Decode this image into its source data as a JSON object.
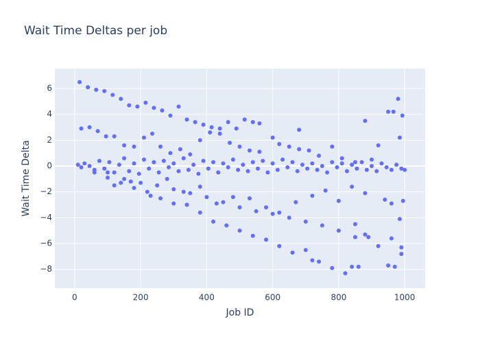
{
  "chart_data": {
    "type": "scatter",
    "title": "Wait Time Deltas per job",
    "x_label": "Job ID",
    "y_label": "Wait Time Delta",
    "color": "#636efa",
    "grid": true,
    "xlim": [
      -60,
      1062
    ],
    "xticks": [
      0,
      200,
      400,
      600,
      800,
      1000
    ],
    "ylim": [
      -9.45,
      7.54
    ],
    "yticks": [
      {
        "value": -8,
        "label": "−8"
      },
      {
        "value": -6,
        "label": "−6"
      },
      {
        "value": -4,
        "label": "−4"
      },
      {
        "value": -2,
        "label": "−2"
      },
      0,
      2,
      4,
      6
    ],
    "x": [
      10,
      20,
      30,
      45,
      60,
      75,
      90,
      105,
      120,
      135,
      150,
      165,
      180,
      195,
      210,
      225,
      240,
      255,
      270,
      285,
      300,
      315,
      330,
      345,
      360,
      375,
      390,
      405,
      420,
      435,
      450,
      465,
      480,
      495,
      510,
      525,
      540,
      555,
      570,
      585,
      600,
      615,
      630,
      645,
      660,
      675,
      690,
      705,
      720,
      735,
      750,
      765,
      780,
      795,
      810,
      825,
      840,
      855,
      870,
      885,
      900,
      915,
      930,
      945,
      960,
      975,
      990,
      1000,
      15,
      40,
      65,
      90,
      115,
      140,
      165,
      190,
      215,
      240,
      265,
      290,
      315,
      340,
      365,
      390,
      415,
      440,
      465,
      490,
      515,
      540,
      560,
      20,
      45,
      70,
      95,
      120,
      150,
      180,
      210,
      235,
      260,
      290,
      320,
      350,
      380,
      410,
      440,
      470,
      500,
      530,
      560,
      600,
      620,
      650,
      680,
      710,
      740,
      780,
      810,
      850,
      900,
      920,
      60,
      100,
      140,
      180,
      220,
      260,
      300,
      340,
      380,
      420,
      460,
      500,
      540,
      580,
      620,
      660,
      700,
      720,
      740,
      780,
      820,
      840,
      860,
      100,
      150,
      200,
      250,
      300,
      350,
      400,
      450,
      500,
      550,
      600,
      650,
      700,
      750,
      800,
      850,
      890,
      920,
      950,
      970,
      990,
      120,
      170,
      230,
      280,
      330,
      380,
      430,
      480,
      530,
      580,
      620,
      670,
      720,
      760,
      800,
      840,
      880,
      940,
      960,
      995,
      985,
      880,
      950,
      966,
      980,
      985,
      993,
      680,
      850,
      880,
      960,
      990
    ],
    "values": [
      0.1,
      -0.1,
      0.2,
      0.0,
      -0.3,
      0.4,
      -0.2,
      0.3,
      -0.5,
      0.1,
      0.6,
      -0.4,
      0.2,
      -0.6,
      0.5,
      -0.2,
      0.3,
      -0.5,
      0.4,
      -0.1,
      0.2,
      -0.4,
      0.6,
      -0.3,
      0.1,
      -0.6,
      0.4,
      -0.2,
      0.3,
      -0.5,
      0.2,
      -0.1,
      0.5,
      -0.3,
      0.1,
      -0.4,
      0.3,
      -0.2,
      0.4,
      -0.5,
      0.2,
      -0.3,
      0.5,
      -0.1,
      0.3,
      -0.4,
      0.1,
      -0.2,
      0.2,
      -0.3,
      0.0,
      -0.5,
      0.3,
      -0.1,
      0.2,
      -0.4,
      0.1,
      -0.2,
      0.3,
      -0.3,
      0.0,
      -0.4,
      0.2,
      -0.1,
      -0.3,
      0.1,
      -0.2,
      -0.3,
      6.5,
      6.1,
      5.9,
      5.8,
      5.5,
      5.2,
      4.7,
      4.6,
      4.9,
      4.5,
      4.3,
      3.9,
      4.6,
      3.6,
      3.4,
      3.2,
      3.0,
      2.9,
      3.4,
      2.9,
      3.6,
      3.4,
      3.3,
      2.9,
      3.0,
      2.7,
      2.3,
      2.3,
      1.6,
      1.5,
      2.2,
      2.5,
      1.5,
      1.0,
      1.3,
      0.9,
      2.0,
      2.6,
      2.5,
      1.8,
      1.5,
      1.2,
      1.1,
      2.2,
      1.7,
      1.5,
      1.3,
      1.2,
      0.8,
      1.5,
      0.6,
      0.3,
      0.5,
      1.6,
      -0.5,
      -0.9,
      -1.3,
      -1.7,
      -2.0,
      -2.5,
      -2.9,
      -3.0,
      -3.6,
      -4.3,
      -4.6,
      -5.0,
      -5.4,
      -5.7,
      -6.2,
      -6.7,
      -6.5,
      -7.3,
      -7.4,
      -7.9,
      -8.3,
      -7.8,
      -7.8,
      -0.5,
      -1.0,
      -1.3,
      -1.5,
      -1.8,
      -2.1,
      -2.4,
      -2.8,
      -3.2,
      -3.5,
      -3.7,
      -4.0,
      -4.3,
      -4.6,
      -5.0,
      -5.5,
      -5.5,
      -6.2,
      -7.7,
      -7.8,
      -6.8,
      -1.5,
      -1.2,
      -2.3,
      -1.0,
      -2.0,
      -1.6,
      -2.9,
      -2.4,
      -2.5,
      -3.2,
      -3.6,
      -2.8,
      -2.3,
      -1.9,
      -2.7,
      -1.6,
      -2.1,
      -2.6,
      -2.9,
      -2.7,
      -4.1,
      3.5,
      4.2,
      4.2,
      5.2,
      2.2,
      3.9,
      2.8,
      -4.5,
      -5.3,
      -5.6,
      -6.3
    ]
  }
}
